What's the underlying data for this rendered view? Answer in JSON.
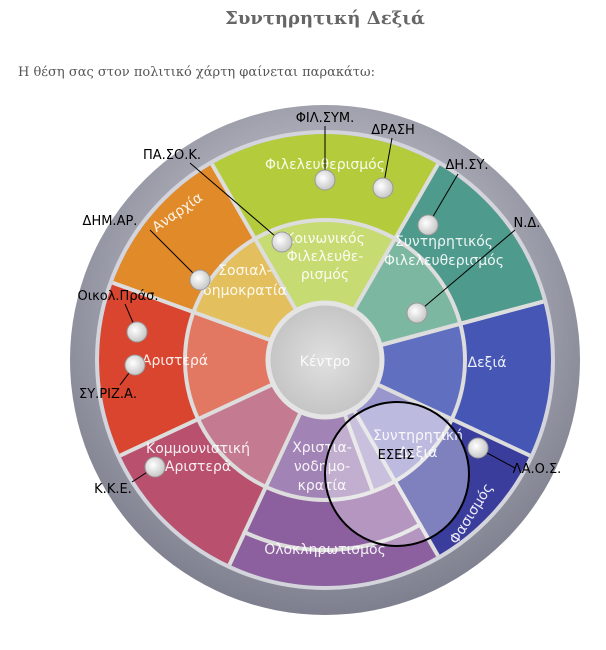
{
  "header": {
    "title": "Συντηρητική Δεξιά",
    "intro": "Η θέση σας στον πολιτικό χάρτη φαίνεται παρακάτω:"
  },
  "regions": [
    {
      "lines": [
        "Φιλελευθερισμός"
      ]
    },
    {
      "lines": [
        "Αναρχία"
      ]
    },
    {
      "lines": [
        "Σοσιαλ-",
        "δημοκρατία"
      ]
    },
    {
      "lines": [
        "Κοινωνικός",
        "Φιλελευθε-",
        "ρισμός"
      ]
    },
    {
      "lines": [
        "Συντηρητικός",
        "Φιλελευθερισμός"
      ]
    },
    {
      "lines": [
        "Αριστερά"
      ]
    },
    {
      "lines": [
        "Κέντρο"
      ]
    },
    {
      "lines": [
        "Δεξιά"
      ]
    },
    {
      "lines": [
        "Κομμουνιστική",
        "Αριστερά"
      ]
    },
    {
      "lines": [
        "Χριστια-",
        "νοδημο-",
        "κρατία"
      ]
    },
    {
      "lines": [
        "Συντηρητική",
        "Δεξιά"
      ]
    },
    {
      "lines": [
        "Φασισμός"
      ]
    },
    {
      "lines": [
        "Ολοκληρωτισμός"
      ]
    }
  ],
  "parties": [
    {
      "label": "ΦΙΛ.ΣΥΜ."
    },
    {
      "label": "ΔΡΑΣΗ"
    },
    {
      "label": "ΠΑ.ΣΟ.Κ."
    },
    {
      "label": "ΔΗ.ΣΥ."
    },
    {
      "label": "ΔΗΜ.ΑΡ."
    },
    {
      "label": "Ν.Δ."
    },
    {
      "label": "Οικολ.Πράσ."
    },
    {
      "label": "ΣΥ.ΡΙΖ.Α."
    },
    {
      "label": "Κ.Κ.Ε."
    },
    {
      "label": "ΛΑ.Ο.Σ."
    }
  ],
  "user": {
    "label": "ΕΣΕΙΣ"
  }
}
